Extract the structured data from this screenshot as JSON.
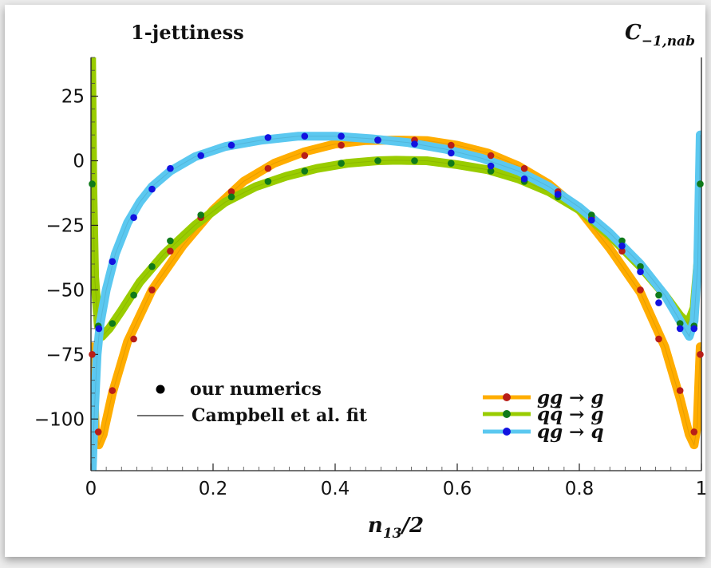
{
  "chart_data": {
    "type": "scatter",
    "title_left": "1-jettiness",
    "title_right": "C",
    "title_right_subscript": "−1,nab",
    "xlabel": "n",
    "xlabel_subscript": "13",
    "xlabel_suffix": "/2",
    "ylabel": "",
    "xlim": [
      0,
      1
    ],
    "ylim": [
      -120,
      40
    ],
    "x_ticks": [
      0,
      0.2,
      0.4,
      0.6,
      0.8,
      1
    ],
    "x_tick_labels": [
      "0",
      "0.2",
      "0.4",
      "0.6",
      "0.8",
      "1"
    ],
    "y_ticks": [
      25,
      0,
      -25,
      -50,
      -75,
      -100
    ],
    "y_tick_labels": [
      "25",
      "0",
      "−25",
      "−50",
      "−75",
      "−100"
    ],
    "grid": false,
    "legend_left": {
      "placement": "bottom-left",
      "entries": [
        {
          "marker": "dot",
          "label": "our numerics"
        },
        {
          "marker": "line",
          "label": "Campbell et al. fit"
        }
      ]
    },
    "legend_right": {
      "placement": "bottom-right",
      "entries": [
        "gg → g",
        "qq̄ → g",
        "qg → q"
      ]
    },
    "series": [
      {
        "name": "gg → g",
        "band_color": "#ffad00",
        "point_color": "#b81e18",
        "curve": [
          [
            0.002,
            -72
          ],
          [
            0.007,
            -104
          ],
          [
            0.013,
            -110
          ],
          [
            0.02,
            -106
          ],
          [
            0.035,
            -90
          ],
          [
            0.06,
            -70
          ],
          [
            0.1,
            -50
          ],
          [
            0.15,
            -33
          ],
          [
            0.2,
            -19
          ],
          [
            0.25,
            -8
          ],
          [
            0.3,
            -1
          ],
          [
            0.35,
            3.5
          ],
          [
            0.4,
            6.5
          ],
          [
            0.45,
            7.8
          ],
          [
            0.5,
            8
          ],
          [
            0.55,
            7.8
          ],
          [
            0.6,
            6
          ],
          [
            0.65,
            3
          ],
          [
            0.7,
            -2
          ],
          [
            0.75,
            -9
          ],
          [
            0.8,
            -19
          ],
          [
            0.85,
            -34
          ],
          [
            0.9,
            -51
          ],
          [
            0.94,
            -72
          ],
          [
            0.965,
            -92
          ],
          [
            0.98,
            -106
          ],
          [
            0.988,
            -110
          ],
          [
            0.993,
            -103
          ],
          [
            0.998,
            -72
          ]
        ],
        "points": [
          [
            0.002,
            -75
          ],
          [
            0.012,
            -105
          ],
          [
            0.035,
            -89
          ],
          [
            0.07,
            -69
          ],
          [
            0.1,
            -50
          ],
          [
            0.13,
            -35
          ],
          [
            0.18,
            -22
          ],
          [
            0.23,
            -12
          ],
          [
            0.29,
            -3
          ],
          [
            0.35,
            2
          ],
          [
            0.41,
            6
          ],
          [
            0.47,
            8
          ],
          [
            0.53,
            8
          ],
          [
            0.59,
            6
          ],
          [
            0.655,
            2
          ],
          [
            0.71,
            -3
          ],
          [
            0.765,
            -12
          ],
          [
            0.82,
            -22
          ],
          [
            0.87,
            -35
          ],
          [
            0.9,
            -50
          ],
          [
            0.93,
            -69
          ],
          [
            0.965,
            -89
          ],
          [
            0.988,
            -105
          ],
          [
            0.998,
            -75
          ]
        ]
      },
      {
        "name": "qq̄ → g",
        "band_color": "#99cc00",
        "point_color": "#0f7a1a",
        "curve": [
          [
            0.001,
            40
          ],
          [
            0.003,
            -10
          ],
          [
            0.006,
            -45
          ],
          [
            0.012,
            -64
          ],
          [
            0.018,
            -68
          ],
          [
            0.03,
            -65
          ],
          [
            0.05,
            -58
          ],
          [
            0.08,
            -47
          ],
          [
            0.12,
            -36
          ],
          [
            0.17,
            -25
          ],
          [
            0.22,
            -16
          ],
          [
            0.27,
            -10
          ],
          [
            0.32,
            -6
          ],
          [
            0.37,
            -3
          ],
          [
            0.42,
            -1
          ],
          [
            0.47,
            0
          ],
          [
            0.5,
            0.2
          ],
          [
            0.55,
            0
          ],
          [
            0.6,
            -1.5
          ],
          [
            0.65,
            -3.5
          ],
          [
            0.7,
            -7
          ],
          [
            0.75,
            -12
          ],
          [
            0.8,
            -19
          ],
          [
            0.85,
            -29
          ],
          [
            0.9,
            -41
          ],
          [
            0.94,
            -52
          ],
          [
            0.965,
            -60
          ],
          [
            0.978,
            -63
          ],
          [
            0.988,
            -57
          ],
          [
            0.994,
            -40
          ],
          [
            0.998,
            -9
          ]
        ],
        "points": [
          [
            0.002,
            -9
          ],
          [
            0.012,
            -64
          ],
          [
            0.035,
            -63
          ],
          [
            0.07,
            -52
          ],
          [
            0.1,
            -41
          ],
          [
            0.13,
            -31
          ],
          [
            0.18,
            -21
          ],
          [
            0.23,
            -14
          ],
          [
            0.29,
            -8
          ],
          [
            0.35,
            -4
          ],
          [
            0.41,
            -1
          ],
          [
            0.47,
            0
          ],
          [
            0.53,
            0
          ],
          [
            0.59,
            -1
          ],
          [
            0.655,
            -4
          ],
          [
            0.71,
            -8
          ],
          [
            0.765,
            -14
          ],
          [
            0.82,
            -21
          ],
          [
            0.87,
            -31
          ],
          [
            0.9,
            -41
          ],
          [
            0.93,
            -52
          ],
          [
            0.965,
            -63
          ],
          [
            0.988,
            -64
          ],
          [
            0.998,
            -9
          ]
        ]
      },
      {
        "name": "qg → q",
        "band_color": "#5bc8f0",
        "point_color": "#1212e0",
        "curve": [
          [
            0.002,
            -120
          ],
          [
            0.006,
            -95
          ],
          [
            0.01,
            -75
          ],
          [
            0.015,
            -63
          ],
          [
            0.025,
            -50
          ],
          [
            0.04,
            -36
          ],
          [
            0.06,
            -24
          ],
          [
            0.08,
            -16
          ],
          [
            0.1,
            -10
          ],
          [
            0.13,
            -4
          ],
          [
            0.17,
            1.5
          ],
          [
            0.22,
            5.5
          ],
          [
            0.28,
            8
          ],
          [
            0.34,
            9.5
          ],
          [
            0.4,
            9.5
          ],
          [
            0.46,
            8.5
          ],
          [
            0.52,
            7
          ],
          [
            0.58,
            4.5
          ],
          [
            0.64,
            1
          ],
          [
            0.7,
            -4
          ],
          [
            0.75,
            -10
          ],
          [
            0.8,
            -18
          ],
          [
            0.85,
            -28
          ],
          [
            0.9,
            -40
          ],
          [
            0.94,
            -52
          ],
          [
            0.965,
            -62
          ],
          [
            0.98,
            -68
          ],
          [
            0.988,
            -62
          ],
          [
            0.994,
            -40
          ],
          [
            0.998,
            10
          ]
        ],
        "points": [
          [
            0.013,
            -65
          ],
          [
            0.035,
            -39
          ],
          [
            0.07,
            -22
          ],
          [
            0.1,
            -11
          ],
          [
            0.13,
            -3
          ],
          [
            0.18,
            2
          ],
          [
            0.23,
            6
          ],
          [
            0.29,
            9
          ],
          [
            0.35,
            9.5
          ],
          [
            0.41,
            9.5
          ],
          [
            0.47,
            8
          ],
          [
            0.53,
            6.5
          ],
          [
            0.59,
            3
          ],
          [
            0.655,
            -2
          ],
          [
            0.71,
            -7
          ],
          [
            0.765,
            -13
          ],
          [
            0.82,
            -23
          ],
          [
            0.87,
            -33
          ],
          [
            0.9,
            -43
          ],
          [
            0.93,
            -55
          ],
          [
            0.965,
            -65
          ],
          [
            0.988,
            -65
          ]
        ]
      }
    ]
  }
}
